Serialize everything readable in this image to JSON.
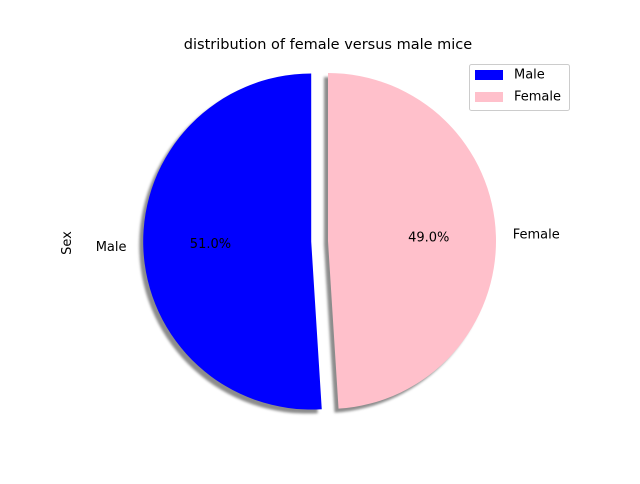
{
  "chart_data": {
    "type": "pie",
    "title": "distribution of female versus male mice",
    "ylabel": "Sex",
    "slices": [
      {
        "label": "Male",
        "value": 51.0,
        "pct_label": "51.0%",
        "color": "#0000ff",
        "explode": true
      },
      {
        "label": "Female",
        "value": 49.0,
        "pct_label": "49.0%",
        "color": "#ffc0cb",
        "explode": false
      }
    ],
    "start_angle_deg": 90,
    "direction": "counterclockwise",
    "shadow": true,
    "legend": {
      "placement": "top-right",
      "entries": [
        "Male",
        "Female"
      ]
    }
  }
}
